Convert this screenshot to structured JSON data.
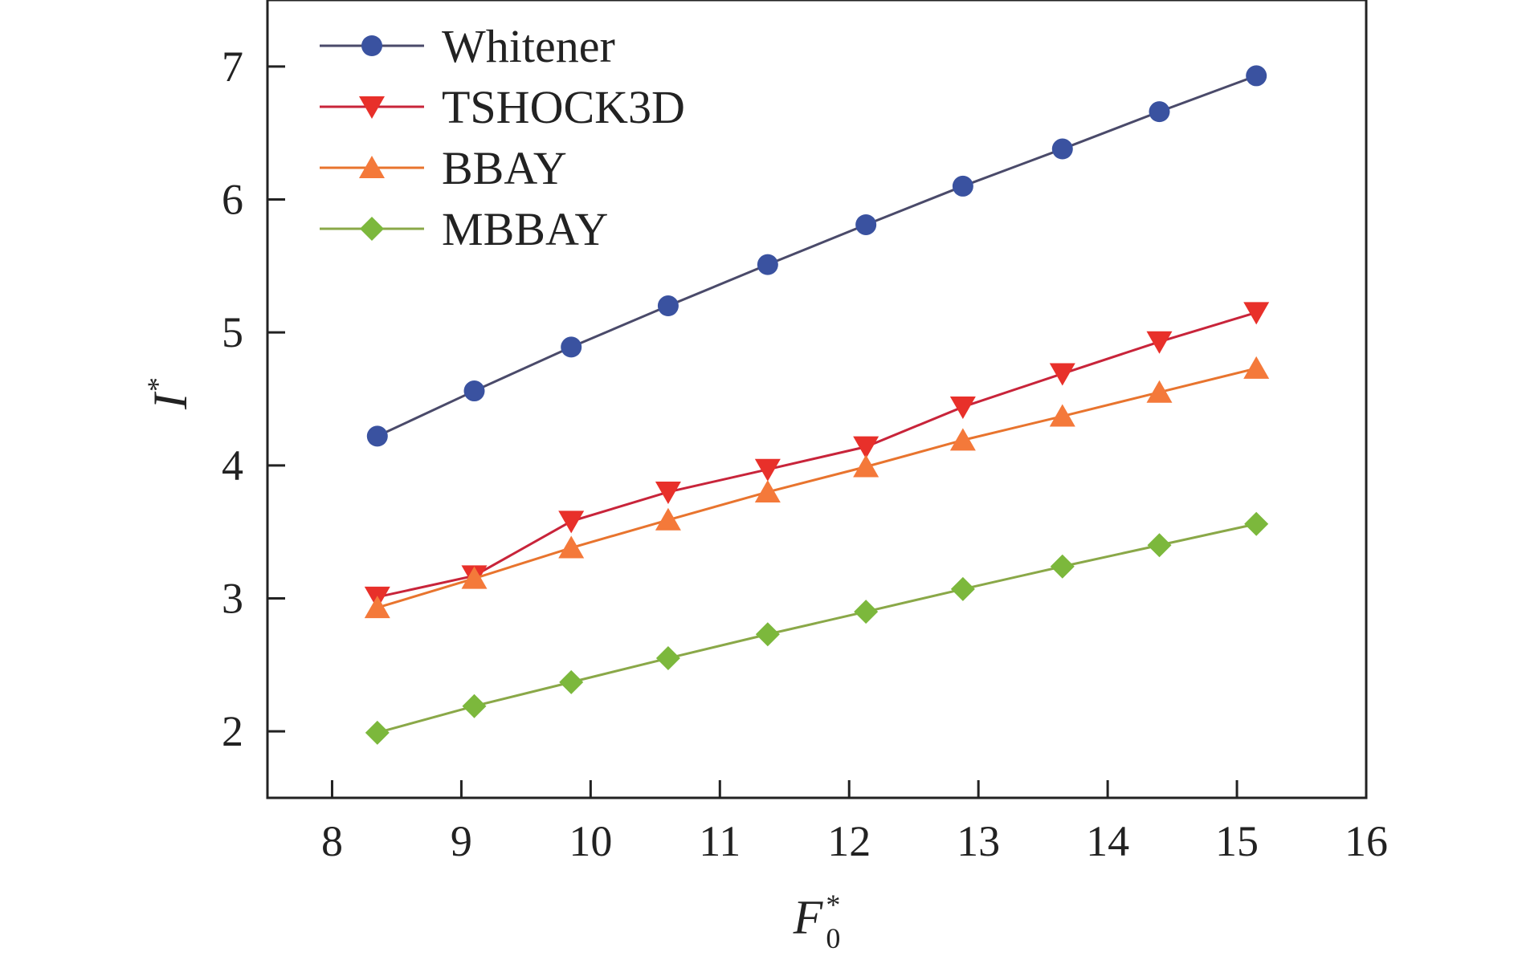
{
  "chart_data": {
    "type": "line",
    "title": "",
    "xlabel": {
      "base": "F",
      "sub": "0",
      "sup": "*"
    },
    "ylabel": {
      "base": "I",
      "sup": "*"
    },
    "xlim": [
      7.5,
      16
    ],
    "ylim": [
      1.5,
      7.5
    ],
    "xticks": [
      8,
      9,
      10,
      11,
      12,
      13,
      14,
      15,
      16
    ],
    "yticks": [
      2,
      3,
      4,
      5,
      6,
      7
    ],
    "grid": false,
    "legend_position": "top-left",
    "x": [
      8.35,
      9.1,
      9.85,
      10.6,
      11.37,
      12.13,
      12.88,
      13.65,
      14.4,
      15.15
    ],
    "series": [
      {
        "name": "Whitener",
        "marker": "circle",
        "color": "#3a52a0",
        "line_color": "#4a4a6a",
        "values": [
          4.22,
          4.56,
          4.89,
          5.2,
          5.51,
          5.81,
          6.1,
          6.38,
          6.66,
          6.93
        ]
      },
      {
        "name": "TSHOCK3D",
        "marker": "triangle-down",
        "color": "#e8302a",
        "line_color": "#c8243a",
        "values": [
          3.01,
          3.17,
          3.58,
          3.8,
          3.97,
          4.14,
          4.44,
          4.69,
          4.93,
          5.15
        ]
      },
      {
        "name": "BBAY",
        "marker": "triangle-up",
        "color": "#f4793a",
        "line_color": "#e8742e",
        "values": [
          2.93,
          3.15,
          3.38,
          3.59,
          3.8,
          3.99,
          4.19,
          4.37,
          4.55,
          4.73
        ]
      },
      {
        "name": "MBBAY",
        "marker": "diamond",
        "color": "#7cb83c",
        "line_color": "#8aa848",
        "values": [
          1.99,
          2.19,
          2.37,
          2.55,
          2.73,
          2.9,
          3.07,
          3.24,
          3.4,
          3.56
        ]
      }
    ]
  }
}
